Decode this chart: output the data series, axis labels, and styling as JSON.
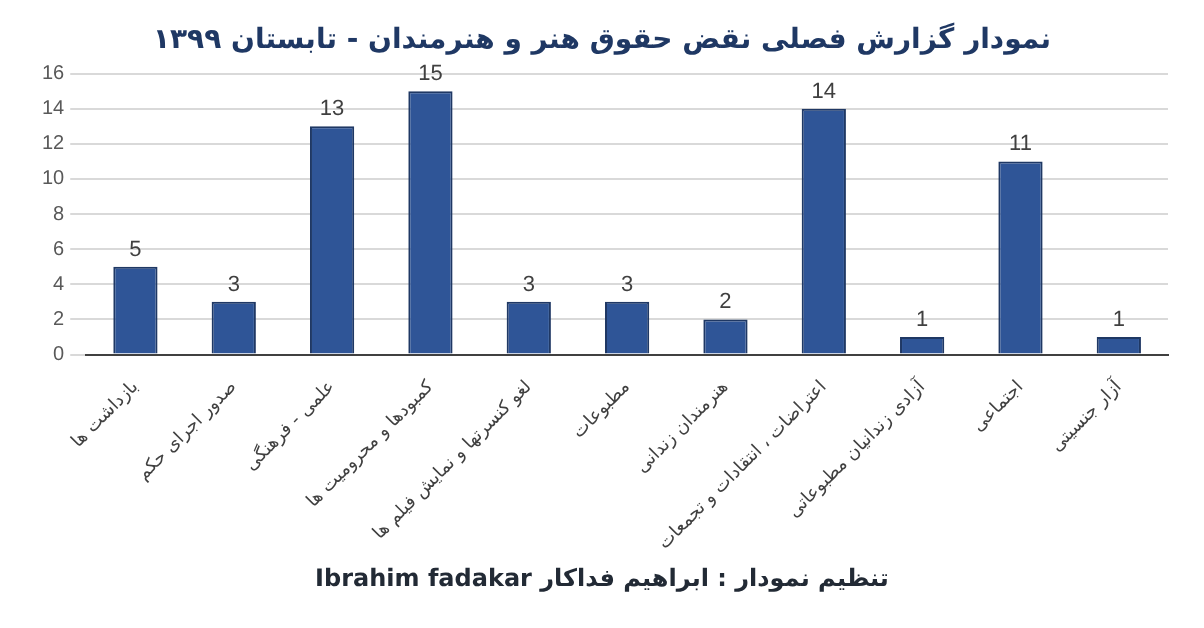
{
  "chart_data": {
    "type": "bar",
    "title": "نمودار گزارش فصلی نقض حقوق هنر و هنرمندان - تابستان ۱۳۹۹",
    "categories": [
      "بازداشت ها",
      "صدور اجرای حکم",
      "علمی - فرهنگی",
      "کمبودها و محرومیت ها",
      "لغو کنسرتها و نمایش فیلم ها",
      "مطبوعات",
      "هنرمندان زندانی",
      "اعتراضات ، انتقادات و تجمعات",
      "آزادی زندانیان مطبوعاتی",
      "اجتماعی",
      "آزار جنسیتی"
    ],
    "values": [
      5,
      3,
      13,
      15,
      3,
      3,
      2,
      14,
      1,
      11,
      1
    ],
    "color": "#2f5597",
    "ylim": [
      0,
      16
    ],
    "yticks": [
      0,
      2,
      4,
      6,
      8,
      10,
      12,
      14,
      16
    ],
    "grid": "y",
    "data_labels": true,
    "legend": false,
    "annotations": [
      "تنظیم نمودار : ابراهیم فداکار  Ibrahim fadakar"
    ]
  }
}
